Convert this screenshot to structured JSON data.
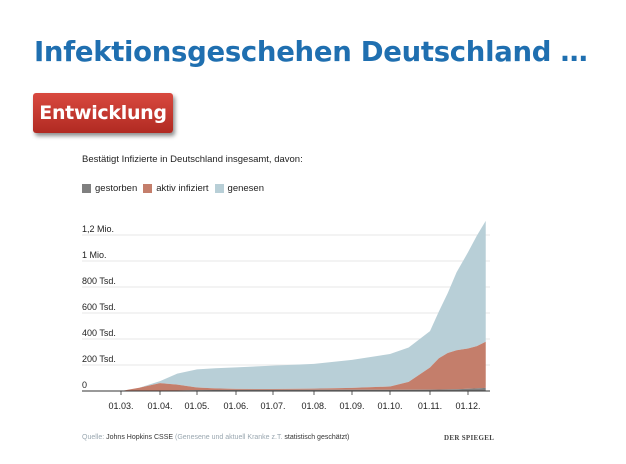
{
  "slide": {
    "title": "Infektionsgeschehen Deutschland …",
    "badge": "Entwicklung"
  },
  "colors": {
    "title": "#1f6fb0",
    "badge": "#c0342b",
    "gestorben": "#7f7f7f",
    "aktiv": "#c47e6b",
    "genesen": "#b8cfd7"
  },
  "chart_data": {
    "type": "area",
    "subtitle": "Bestätigt Infizierte in Deutschland insgesamt, davon:",
    "stacked": true,
    "x_tick_labels": [
      "01.03.",
      "01.04.",
      "01.05.",
      "01.06.",
      "01.07.",
      "01.08.",
      "01.09.",
      "01.10.",
      "01.11.",
      "01.12."
    ],
    "y_tick_labels": [
      "0",
      "200 Tsd.",
      "400 Tsd.",
      "600 Tsd.",
      "800 Tsd.",
      "1 Mio.",
      "1,2 Mio."
    ],
    "y_ticks": [
      0,
      200000,
      400000,
      600000,
      800000,
      1000000,
      1200000
    ],
    "ylim": [
      0,
      1400000
    ],
    "legend_position": "top-left",
    "grid": true,
    "x": [
      "01.03.",
      "15.03.",
      "01.04.",
      "15.04.",
      "01.05.",
      "15.05.",
      "01.06.",
      "01.07.",
      "01.08.",
      "01.09.",
      "01.10.",
      "15.10.",
      "01.11.",
      "08.11.",
      "15.11.",
      "22.11.",
      "01.12.",
      "08.12.",
      "15.12."
    ],
    "series": [
      {
        "name": "gestorben",
        "values": [
          0,
          0,
          1000,
          4000,
          6500,
          7900,
          8600,
          9000,
          9200,
          9300,
          9500,
          9800,
          10500,
          11500,
          12500,
          13500,
          17000,
          20000,
          24000
        ]
      },
      {
        "name": "aktiv infiziert",
        "values": [
          100,
          25000,
          60000,
          45000,
          20000,
          12000,
          8000,
          6000,
          9000,
          15000,
          25000,
          60000,
          170000,
          240000,
          280000,
          300000,
          310000,
          325000,
          355000
        ]
      },
      {
        "name": "genesen",
        "values": [
          0,
          0,
          15000,
          85000,
          140000,
          155000,
          165000,
          180000,
          190000,
          215000,
          250000,
          265000,
          280000,
          360000,
          460000,
          600000,
          740000,
          850000,
          930000
        ]
      }
    ],
    "source": {
      "label": "Quelle:",
      "org": "Johns Hopkins CSSE",
      "note": "(Genesene und aktuell Kranke z.T.",
      "estimated": "statistisch geschätzt)",
      "brand": "DER SPIEGEL"
    }
  }
}
